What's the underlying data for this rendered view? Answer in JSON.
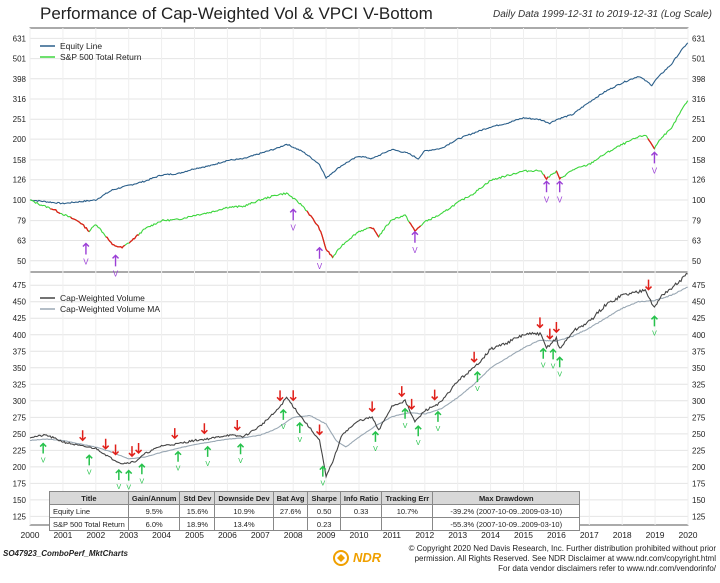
{
  "title": "Performance of Cap-Weighted Vol & VPCI V-Bottom",
  "subtitle": "Daily Data 1999-12-31 to 2019-12-31 (Log Scale)",
  "chart_data": [
    {
      "type": "line",
      "panel": "top",
      "scale": "log",
      "legend": [
        "Equity Line",
        "S&P 500 Total Return"
      ],
      "yticks": [
        50,
        63,
        79,
        100,
        126,
        158,
        200,
        251,
        316,
        398,
        501,
        631
      ],
      "ylim": [
        44,
        710
      ],
      "x_years": [
        2000,
        2001,
        2002,
        2003,
        2004,
        2005,
        2006,
        2007,
        2008,
        2009,
        2010,
        2011,
        2012,
        2013,
        2014,
        2015,
        2016,
        2017,
        2018,
        2019,
        2020
      ],
      "series": [
        {
          "name": "Equity Line",
          "color": "#2b5f8a",
          "x": [
            2000,
            2000.5,
            2001,
            2001.5,
            2002,
            2002.5,
            2003,
            2003.5,
            2004,
            2004.5,
            2005,
            2005.5,
            2006,
            2006.5,
            2007,
            2007.5,
            2007.8,
            2008.3,
            2008.8,
            2009.0,
            2009.2,
            2009.5,
            2010,
            2010.4,
            2010.8,
            2011,
            2011.5,
            2011.8,
            2012,
            2012.5,
            2013,
            2013.5,
            2014,
            2014.5,
            2015,
            2015.5,
            2015.8,
            2016,
            2016.5,
            2017,
            2017.5,
            2018,
            2018.5,
            2018.9,
            2019.0,
            2019.5,
            2019.99
          ],
          "values": [
            100,
            98,
            96,
            98,
            100,
            112,
            118,
            124,
            133,
            135,
            143,
            148,
            157,
            160,
            170,
            180,
            189,
            173,
            150,
            128,
            137,
            149,
            165,
            160,
            172,
            178,
            170,
            160,
            175,
            180,
            200,
            215,
            230,
            240,
            255,
            250,
            240,
            250,
            265,
            305,
            345,
            380,
            410,
            370,
            390,
            470,
            600
          ]
        },
        {
          "name": "S&P 500 Total Return",
          "color": "#3dd63d",
          "x": [
            2000,
            2000.3,
            2000.7,
            2001,
            2001.5,
            2001.8,
            2002,
            2002.5,
            2002.8,
            2003.1,
            2003.5,
            2004,
            2004.5,
            2005,
            2005.5,
            2006,
            2006.5,
            2007,
            2007.5,
            2007.8,
            2008.3,
            2008.8,
            2009.0,
            2009.2,
            2009.5,
            2010,
            2010.4,
            2010.6,
            2011,
            2011.4,
            2011.7,
            2012,
            2012.5,
            2013,
            2013.5,
            2014,
            2014.5,
            2015,
            2015.5,
            2015.7,
            2016,
            2016.1,
            2016.5,
            2017,
            2017.5,
            2018,
            2018.5,
            2018.7,
            2018.98,
            2019.2,
            2019.5,
            2019.99
          ],
          "values": [
            100,
            95,
            90,
            85,
            78,
            70,
            76,
            60,
            58,
            63,
            72,
            79,
            80,
            84,
            87,
            92,
            93,
            100,
            106,
            108,
            93,
            72,
            57,
            52,
            60,
            70,
            73,
            66,
            80,
            84,
            70,
            78,
            85,
            97,
            108,
            125,
            132,
            139,
            140,
            128,
            138,
            127,
            141,
            150,
            170,
            188,
            205,
            210,
            180,
            205,
            225,
            310
          ]
        }
      ]
    },
    {
      "type": "line",
      "panel": "bottom",
      "legend": [
        "Cap-Weighted Volume",
        "Cap-Weighted Volume MA"
      ],
      "yticks": [
        125,
        150,
        175,
        200,
        225,
        250,
        275,
        300,
        325,
        350,
        375,
        400,
        425,
        450,
        475
      ],
      "ylim": [
        112,
        495
      ],
      "x_years": [
        2000,
        2001,
        2002,
        2003,
        2004,
        2005,
        2006,
        2007,
        2008,
        2009,
        2010,
        2011,
        2012,
        2013,
        2014,
        2015,
        2016,
        2017,
        2018,
        2019,
        2020
      ],
      "series": [
        {
          "name": "Cap-Weighted Volume",
          "color": "#444444",
          "x": [
            2000,
            2000.5,
            2001,
            2001.5,
            2002,
            2002.5,
            2002.8,
            2003.2,
            2003.5,
            2004,
            2004.5,
            2005,
            2005.5,
            2006,
            2006.5,
            2007,
            2007.5,
            2007.8,
            2008.3,
            2008.8,
            2009.0,
            2009.2,
            2009.5,
            2010,
            2010.4,
            2010.6,
            2011,
            2011.4,
            2011.7,
            2012,
            2012.5,
            2013,
            2013.5,
            2014,
            2014.5,
            2015,
            2015.5,
            2015.7,
            2016,
            2016.1,
            2016.5,
            2017,
            2017.5,
            2018,
            2018.5,
            2018.7,
            2018.98,
            2019.2,
            2019.5,
            2019.99
          ],
          "values": [
            245,
            248,
            238,
            232,
            228,
            212,
            205,
            208,
            220,
            232,
            235,
            240,
            243,
            248,
            246,
            262,
            285,
            305,
            272,
            240,
            185,
            208,
            250,
            270,
            275,
            255,
            292,
            300,
            268,
            285,
            298,
            330,
            350,
            378,
            388,
            400,
            402,
            380,
            395,
            378,
            405,
            420,
            445,
            460,
            465,
            470,
            440,
            460,
            470,
            492
          ]
        },
        {
          "name": "Cap-Weighted Volume MA",
          "color": "#9aa8b4",
          "x": [
            2000,
            2000.5,
            2001,
            2001.5,
            2002,
            2002.5,
            2003,
            2003.5,
            2004,
            2004.5,
            2005,
            2005.5,
            2006,
            2006.5,
            2007,
            2007.5,
            2008,
            2008.5,
            2009,
            2009.3,
            2009.6,
            2010,
            2010.5,
            2011,
            2011.5,
            2012,
            2012.5,
            2013,
            2013.5,
            2014,
            2014.5,
            2015,
            2015.5,
            2016,
            2016.5,
            2017,
            2017.5,
            2018,
            2018.5,
            2019,
            2019.5,
            2019.99
          ],
          "values": [
            240,
            242,
            240,
            235,
            230,
            222,
            212,
            215,
            222,
            228,
            234,
            238,
            242,
            244,
            248,
            258,
            275,
            278,
            265,
            240,
            230,
            245,
            262,
            276,
            282,
            280,
            288,
            305,
            325,
            350,
            365,
            380,
            392,
            390,
            398,
            410,
            425,
            440,
            450,
            452,
            460,
            472
          ]
        }
      ]
    }
  ],
  "legend_top": [
    "Equity Line",
    "S&P 500 Total Return"
  ],
  "legend_bottom": [
    "Cap-Weighted Volume",
    "Cap-Weighted Volume MA"
  ],
  "table": {
    "headers": [
      "Title",
      "Gain/Annum",
      "Std Dev",
      "Downside Dev",
      "Bat Avg",
      "Sharpe",
      "Info Ratio",
      "Tracking Err",
      "Max Drawdown"
    ],
    "rows": [
      [
        "Equity Line",
        "9.5%",
        "15.6%",
        "10.9%",
        "27.6%",
        "0.50",
        "0.33",
        "10.7%",
        "-39.2% (2007-10-09..2009-03-10)"
      ],
      [
        "S&P 500 Total Return",
        "6.0%",
        "18.9%",
        "13.4%",
        "",
        "0.23",
        "",
        "",
        "-55.3% (2007-10-09..2009-03-10)"
      ]
    ]
  },
  "footer": {
    "code": "SO47923_ComboPerf_MktCharts",
    "brand": "NDR",
    "copyright1": "© Copyright 2020 Ned Davis Research, Inc. Further distribution prohibited without prior",
    "copyright2": "permission. All Rights Reserved. See NDR Disclaimer at www.ndr.com/copyright.html",
    "copyright3": "For data vendor disclaimers refer to www.ndr.com/vendorinfo/"
  },
  "signal_marker": "V",
  "colors": {
    "equity": "#2b5f8a",
    "sp500": "#3dd63d",
    "bear": "#e0201a",
    "signal": "#9b3fd6",
    "volume": "#444444",
    "volume_ma": "#9aa8b4"
  }
}
